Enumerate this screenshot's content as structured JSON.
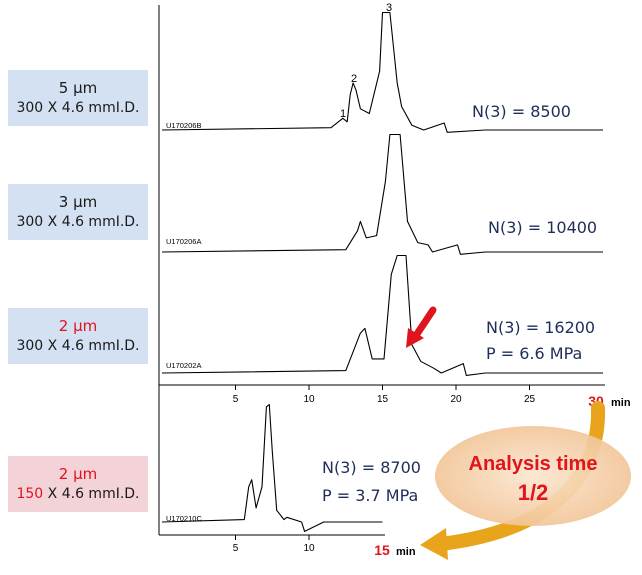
{
  "panels": [
    {
      "particle": "5 µm",
      "column_len": "300",
      "column_rest": " X 4.6 mmI.D.",
      "sample_id": "U170206B",
      "plate_count": "N(3) = 8500",
      "pressure": "",
      "peak_labels": [
        "1",
        "2",
        "3"
      ],
      "highlight_particle": false,
      "highlight_len": false,
      "box_color": "#d4e1f3"
    },
    {
      "particle": "3 µm",
      "column_len": "300",
      "column_rest": " X 4.6 mmI.D.",
      "sample_id": "U170206A",
      "plate_count": "N(3) = 10400",
      "pressure": "",
      "highlight_particle": false,
      "highlight_len": false,
      "box_color": "#d4e1f3"
    },
    {
      "particle": "2 µm",
      "column_len": "300",
      "column_rest": " X 4.6 mmI.D.",
      "sample_id": "U170202A",
      "plate_count": "N(3) = 16200",
      "pressure": "P = 6.6 MPa",
      "highlight_particle": true,
      "highlight_len": false,
      "box_color": "#d4e1f3"
    },
    {
      "particle": "2 µm",
      "column_len": "150",
      "column_rest": " X 4.6 mmI.D.",
      "sample_id": "U170210C",
      "plate_count": "N(3) = 8700",
      "pressure": "P = 3.7 MPa",
      "highlight_particle": true,
      "highlight_len": true,
      "box_color": "#f3d3d8"
    }
  ],
  "axis_top": {
    "ticks": [
      "5",
      "10",
      "15",
      "20",
      "25"
    ],
    "end_value": "30",
    "unit": "min"
  },
  "axis_bottom": {
    "ticks": [
      "5",
      "10"
    ],
    "end_value": "15",
    "unit": "min"
  },
  "annotation": {
    "line1": "Analysis time",
    "line2": "1/2"
  },
  "colors": {
    "text_blue": "#1f2d5a",
    "highlight_red": "#e0141e",
    "arrow_gold": "#e8a41a",
    "ellipse_fill": "#f6d3b0"
  },
  "chart_data": [
    {
      "type": "line",
      "title": "",
      "xlabel": "min",
      "xlim": [
        0,
        30
      ],
      "xticks": [
        5,
        10,
        15,
        20,
        25,
        30
      ],
      "series": [
        {
          "name": "U170206B",
          "x": [
            0,
            11.5,
            12.3,
            12.6,
            12.8,
            13.0,
            13.2,
            13.5,
            14.1,
            14.8,
            15.0,
            15.5,
            16.0,
            16.3,
            17.0,
            17.8,
            19.2,
            19.4,
            22,
            30
          ],
          "y": [
            0,
            0.1,
            0.5,
            0.35,
            1.5,
            2.0,
            1.7,
            0.9,
            0.7,
            2.5,
            5.0,
            5.0,
            2.0,
            1.0,
            0.2,
            0.0,
            0.3,
            -0.1,
            0,
            0
          ]
        },
        {
          "name": "U170206A",
          "x": [
            0,
            12.5,
            13.3,
            13.5,
            13.9,
            14.6,
            15.2,
            15.5,
            16.2,
            16.7,
            17.4,
            18.1,
            18.4,
            20.1,
            20.3,
            22,
            30
          ],
          "y": [
            0,
            0.1,
            0.9,
            1.3,
            0.6,
            0.7,
            3.0,
            5.0,
            5.0,
            1.3,
            0.4,
            0.3,
            0.0,
            0.3,
            -0.1,
            0,
            0
          ]
        },
        {
          "name": "U170202A",
          "x": [
            0,
            12.5,
            13.5,
            13.8,
            14.3,
            15.1,
            15.6,
            16.0,
            16.6,
            17.0,
            17.6,
            18.5,
            19.0,
            20.5,
            20.7,
            22,
            30
          ],
          "y": [
            0,
            0.1,
            1.7,
            1.9,
            0.6,
            0.6,
            4.2,
            5.0,
            5.0,
            1.2,
            0.5,
            0.2,
            0.0,
            0.4,
            -0.1,
            0,
            0
          ]
        }
      ]
    },
    {
      "type": "line",
      "title": "",
      "xlabel": "min",
      "xlim": [
        0,
        15
      ],
      "xticks": [
        5,
        10,
        15
      ],
      "series": [
        {
          "name": "U170210C",
          "x": [
            0,
            5.6,
            5.9,
            6.1,
            6.4,
            6.8,
            7.1,
            7.3,
            7.5,
            7.8,
            8.3,
            8.5,
            9.5,
            9.7,
            11,
            15
          ],
          "y": [
            0,
            0.1,
            1.5,
            1.8,
            0.6,
            1.5,
            4.9,
            5.0,
            3.0,
            0.5,
            0.1,
            0.2,
            0.0,
            -0.4,
            0,
            0
          ]
        }
      ]
    }
  ]
}
